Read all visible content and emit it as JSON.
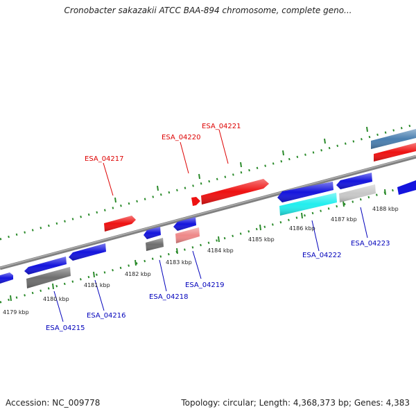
{
  "title": "Cronobacter sakazakii ATCC BAA-894 chromosome, complete geno...",
  "footer": {
    "accession": "Accession: NC_009778",
    "info": "Topology: circular; Length: 4,368,373 bp; Genes: 4,383"
  },
  "colors": {
    "forward_cds": "#ee1111",
    "reverse_cds": "#1414dd",
    "forward_label": "#dd0000",
    "reverse_label": "#0000bb",
    "tick": "#2a8a2a",
    "backbone": "#777777",
    "gray_feature": "#6e6e6e",
    "light_gray_feature": "#c8c8c8",
    "cyan_feature": "#22eeee",
    "pink_feature": "#ee8888",
    "steel_feature": "#4a7fb0"
  },
  "ticks": [
    "4179 kbp",
    "4180 kbp",
    "4181 kbp",
    "4182 kbp",
    "4183 kbp",
    "4184 kbp",
    "4185 kbp",
    "4186 kbp",
    "4187 kbp",
    "4188 kbp"
  ],
  "gene_labels": {
    "forward": [
      "ESA_04217",
      "ESA_04220",
      "ESA_04221"
    ],
    "reverse": [
      "ESA_04215",
      "ESA_04216",
      "ESA_04218",
      "ESA_04219",
      "ESA_04222",
      "ESA_04223"
    ]
  }
}
